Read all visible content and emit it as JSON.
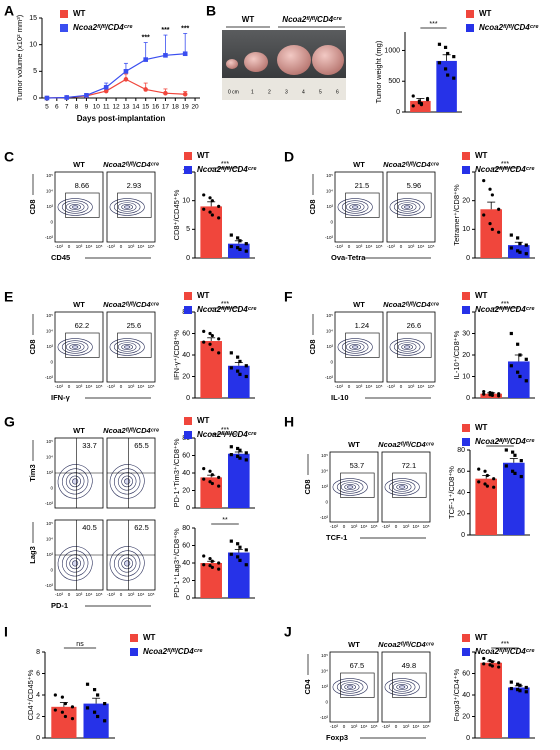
{
  "panel_labels": [
    "A",
    "B",
    "C",
    "D",
    "E",
    "F",
    "G",
    "H",
    "I",
    "J"
  ],
  "photo": {
    "labels": [
      "WT",
      "Ncoa2ᶠˡ/ᶠˡ/CD4ᶜʳᵉ"
    ],
    "ruler": [
      "0 cm",
      1,
      2,
      3,
      4,
      5,
      6
    ]
  },
  "flow_ticks": [
    "-10³",
    "0",
    "10³",
    "10⁴",
    "10⁵"
  ],
  "flow_plots": [
    {
      "xlabel": "CD45",
      "gate_style": "box",
      "titles": [
        "WT",
        "Ncoa2ᶠˡ/ᶠˡ/CD4ᶜʳᵉ"
      ],
      "rows": [
        {
          "ylabel": "CD8",
          "gates": [
            8.66,
            2.93
          ]
        }
      ]
    },
    {
      "xlabel": "Ova-Tetra",
      "gate_style": "box",
      "titles": [
        "WT",
        "Ncoa2ᶠˡ/ᶠˡ/CD4ᶜʳᵉ"
      ],
      "rows": [
        {
          "ylabel": "CD8",
          "gates": [
            21.5,
            5.96
          ]
        }
      ]
    },
    {
      "xlabel": "IFN-γ",
      "gate_style": "box",
      "titles": [
        "WT",
        "Ncoa2ᶠˡ/ᶠˡ/CD4ᶜʳᵉ"
      ],
      "rows": [
        {
          "ylabel": "CD8",
          "gates": [
            62.2,
            25.6
          ]
        }
      ]
    },
    {
      "xlabel": "IL-10",
      "gate_style": "box",
      "titles": [
        "WT",
        "Ncoa2ᶠˡ/ᶠˡ/CD4ᶜʳᵉ"
      ],
      "rows": [
        {
          "ylabel": "CD8",
          "gates": [
            1.24,
            26.6
          ]
        }
      ]
    },
    {
      "xlabel": "PD-1",
      "gate_style": "quadrant",
      "titles": [
        "WT",
        "Ncoa2ᶠˡ/ᶠˡ/CD4ᶜʳᵉ"
      ],
      "rows": [
        {
          "ylabel": "Tim3",
          "gates": [
            33.7,
            65.5
          ]
        },
        {
          "ylabel": "Lag3",
          "gates": [
            40.5,
            62.5
          ]
        }
      ]
    },
    {
      "xlabel": "TCF-1",
      "gate_style": "box",
      "titles": [
        "WT",
        "Ncoa2ᶠˡ/ᶠˡ/CD4ᶜʳᵉ"
      ],
      "rows": [
        {
          "ylabel": "CD8",
          "gates": [
            53.7,
            72.1
          ]
        }
      ]
    },
    {
      "xlabel": "Foxp3",
      "gate_style": "box",
      "titles": [
        "WT",
        "Ncoa2ᶠˡ/ᶠˡ/CD4ᶜʳᵉ"
      ],
      "rows": [
        {
          "ylabel": "CD4",
          "gates": [
            67.5,
            49.8
          ]
        }
      ]
    }
  ],
  "chart_data": [
    {
      "type": "line",
      "xlabel": "Days post-implantation",
      "ylabel": "Tumor volume (x10² mm³)",
      "x": [
        5,
        7,
        9,
        11,
        13,
        15,
        17,
        19
      ],
      "xlim": [
        4.5,
        20.5
      ],
      "xticks": [
        5,
        6,
        7,
        8,
        9,
        10,
        11,
        12,
        13,
        14,
        15,
        16,
        17,
        18,
        19,
        20
      ],
      "ylim": [
        0,
        15
      ],
      "yticks": [
        0,
        5,
        10,
        15
      ],
      "legend": true,
      "series": [
        {
          "name": "WT",
          "color": "#f0463c",
          "values": [
            0,
            0.1,
            0.4,
            1.3,
            3.5,
            1.6,
            0.9,
            0.7
          ],
          "errors": [
            0,
            0.1,
            0.3,
            0.6,
            1,
            1.2,
            0.8,
            0.5
          ]
        },
        {
          "name": "Ncoa2ᶠˡ/ᶠˡ/CD4ᶜʳᵉ",
          "color": "#3a4ef0",
          "values": [
            0,
            0.1,
            0.5,
            2,
            5,
            7.2,
            8,
            8.3
          ],
          "errors": [
            0,
            0.1,
            0.3,
            0.8,
            1.5,
            3.2,
            3.8,
            3.8
          ]
        }
      ],
      "annotations": [
        {
          "x": 15,
          "text": "***"
        },
        {
          "x": 17,
          "text": "***"
        },
        {
          "x": 19,
          "text": "***"
        }
      ]
    },
    {
      "type": "bar",
      "ylabel": "Tumor weight (mg)",
      "ylim": [
        0,
        1300
      ],
      "yticks": [
        0,
        500,
        1000
      ],
      "annotation": "***",
      "legend": true,
      "series": [
        {
          "name": "WT",
          "color": "#f0463c",
          "values": [
            180
          ],
          "errors": [
            40
          ],
          "points": [
            100,
            150,
            120,
            200,
            260,
            180,
            140,
            220
          ]
        },
        {
          "name": "Ncoa2ᶠˡ/ᶠˡ/CD4ᶜʳᵉ",
          "color": "#2632e8",
          "values": [
            830
          ],
          "errors": [
            100
          ],
          "points": [
            1100,
            1050,
            950,
            900,
            800,
            700,
            600,
            550
          ]
        }
      ]
    },
    {
      "type": "bar",
      "ylabel": "CD8⁺/CD45⁺%",
      "ylim": [
        0,
        15
      ],
      "yticks": [
        0,
        5,
        10,
        15
      ],
      "annotation": "***",
      "legend": true,
      "series": [
        {
          "name": "WT",
          "color": "#f0463c",
          "values": [
            9
          ],
          "errors": [
            0.8
          ],
          "points": [
            11,
            10.5,
            10,
            9,
            8.5,
            8,
            7.5,
            7
          ]
        },
        {
          "name": "Ncoa2ᶠˡ/ᶠˡ/CD4ᶜʳᵉ",
          "color": "#2632e8",
          "values": [
            2.5
          ],
          "errors": [
            0.5
          ],
          "points": [
            4,
            3.5,
            3,
            2.5,
            2,
            1.8,
            1.5,
            1.2
          ]
        }
      ]
    },
    {
      "type": "bar",
      "ylabel": "Tetramer⁺/CD8⁺%",
      "ylim": [
        0,
        30
      ],
      "yticks": [
        0,
        10,
        20,
        30
      ],
      "annotation": "***",
      "legend": true,
      "series": [
        {
          "name": "WT",
          "color": "#f0463c",
          "values": [
            17
          ],
          "errors": [
            2.5
          ],
          "points": [
            27,
            24,
            22,
            17,
            15,
            12,
            10,
            9
          ]
        },
        {
          "name": "Ncoa2ᶠˡ/ᶠˡ/CD4ᶜʳᵉ",
          "color": "#2632e8",
          "values": [
            4.5
          ],
          "errors": [
            1
          ],
          "points": [
            8,
            7,
            5,
            4.5,
            3.5,
            2.5,
            2,
            1.5
          ]
        }
      ]
    },
    {
      "type": "bar",
      "ylabel": "IFN-γ⁺/CD8⁺%",
      "ylim": [
        0,
        80
      ],
      "yticks": [
        0,
        20,
        40,
        60,
        80
      ],
      "annotation": "***",
      "legend": true,
      "series": [
        {
          "name": "WT",
          "color": "#f0463c",
          "values": [
            53
          ],
          "errors": [
            3
          ],
          "points": [
            62,
            60,
            58,
            55,
            52,
            50,
            45,
            42
          ]
        },
        {
          "name": "Ncoa2ᶠˡ/ᶠˡ/CD4ᶜʳᵉ",
          "color": "#2632e8",
          "values": [
            30
          ],
          "errors": [
            3
          ],
          "points": [
            42,
            38,
            34,
            30,
            28,
            25,
            22,
            20
          ]
        }
      ]
    },
    {
      "type": "bar",
      "ylabel": "IL-10⁺/CD8⁺%",
      "ylim": [
        0,
        40
      ],
      "yticks": [
        0,
        10,
        20,
        30,
        40
      ],
      "annotation": "***",
      "legend": true,
      "series": [
        {
          "name": "WT",
          "color": "#f0463c",
          "values": [
            2
          ],
          "errors": [
            0.4
          ],
          "points": [
            3,
            2.5,
            2.2,
            2,
            1.8,
            1.5,
            1.2,
            1
          ]
        },
        {
          "name": "Ncoa2ᶠˡ/ᶠˡ/CD4ᶜʳᵉ",
          "color": "#2632e8",
          "values": [
            17
          ],
          "errors": [
            3
          ],
          "points": [
            30,
            25,
            20,
            18,
            15,
            12,
            10,
            8
          ]
        }
      ]
    },
    {
      "type": "bar",
      "ylabel": "PD-1⁺Tim3⁺/CD8⁺%",
      "ylim": [
        0,
        80
      ],
      "yticks": [
        0,
        20,
        40,
        60,
        80
      ],
      "annotation": "***",
      "legend": true,
      "series": [
        {
          "name": "WT",
          "color": "#f0463c",
          "values": [
            35
          ],
          "errors": [
            2.5
          ],
          "points": [
            45,
            42,
            38,
            35,
            33,
            30,
            28,
            25
          ]
        },
        {
          "name": "Ncoa2ᶠˡ/ᶠˡ/CD4ᶜʳᵉ",
          "color": "#2632e8",
          "values": [
            62
          ],
          "errors": [
            2
          ],
          "points": [
            70,
            68,
            66,
            63,
            61,
            59,
            57,
            55
          ]
        }
      ]
    },
    {
      "type": "bar",
      "ylabel": "PD-1⁺Lag3⁺/CD8⁺%",
      "ylim": [
        0,
        80
      ],
      "yticks": [
        0,
        20,
        40,
        60,
        80
      ],
      "annotation": "**",
      "legend": false,
      "series": [
        {
          "name": "WT",
          "color": "#f0463c",
          "values": [
            40
          ],
          "errors": [
            2
          ],
          "points": [
            48,
            45,
            42,
            40,
            38,
            37,
            35,
            33
          ]
        },
        {
          "name": "Ncoa2ᶠˡ/ᶠˡ/CD4ᶜʳᵉ",
          "color": "#2632e8",
          "values": [
            52
          ],
          "errors": [
            3.5
          ],
          "points": [
            65,
            62,
            58,
            55,
            50,
            47,
            43,
            38
          ]
        }
      ]
    },
    {
      "type": "bar",
      "ylabel": "TCF-1⁺/CD8⁺%",
      "ylim": [
        0,
        80
      ],
      "yticks": [
        0,
        20,
        40,
        60,
        80
      ],
      "annotation": "**",
      "legend": true,
      "series": [
        {
          "name": "WT",
          "color": "#f0463c",
          "values": [
            53
          ],
          "errors": [
            3
          ],
          "points": [
            62,
            60,
            56,
            53,
            50,
            48,
            46,
            45
          ]
        },
        {
          "name": "Ncoa2ᶠˡ/ᶠˡ/CD4ᶜʳᵉ",
          "color": "#2632e8",
          "values": [
            68
          ],
          "errors": [
            4
          ],
          "points": [
            80,
            78,
            75,
            70,
            65,
            60,
            58,
            55
          ]
        }
      ]
    },
    {
      "type": "bar",
      "ylabel": "CD4⁺/CD45⁺%",
      "ylim": [
        0,
        8
      ],
      "yticks": [
        0,
        2,
        4,
        6,
        8
      ],
      "annotation": "ns",
      "legend": true,
      "series": [
        {
          "name": "WT",
          "color": "#f0463c",
          "values": [
            2.9
          ],
          "errors": [
            0.4
          ],
          "points": [
            4,
            3.8,
            3.2,
            2.9,
            2.6,
            2.4,
            2,
            1.8
          ]
        },
        {
          "name": "Ncoa2ᶠˡ/ᶠˡ/CD4ᶜʳᵉ",
          "color": "#2632e8",
          "values": [
            3.2
          ],
          "errors": [
            0.5
          ],
          "points": [
            5,
            4.5,
            4,
            3.2,
            2.8,
            2.4,
            2,
            1.6
          ]
        }
      ]
    },
    {
      "type": "bar",
      "ylabel": "Foxp3⁺/CD4⁺%",
      "ylim": [
        0,
        80
      ],
      "yticks": [
        0,
        20,
        40,
        60,
        80
      ],
      "annotation": "***",
      "legend": true,
      "series": [
        {
          "name": "WT",
          "color": "#f0463c",
          "values": [
            70
          ],
          "errors": [
            1.5
          ],
          "points": [
            74,
            72,
            71,
            70,
            69,
            68,
            67,
            66
          ]
        },
        {
          "name": "Ncoa2ᶠˡ/ᶠˡ/CD4ᶜʳᵉ",
          "color": "#2632e8",
          "values": [
            47
          ],
          "errors": [
            1.5
          ],
          "points": [
            52,
            50,
            49,
            47,
            46,
            45,
            44,
            43
          ]
        }
      ]
    }
  ]
}
